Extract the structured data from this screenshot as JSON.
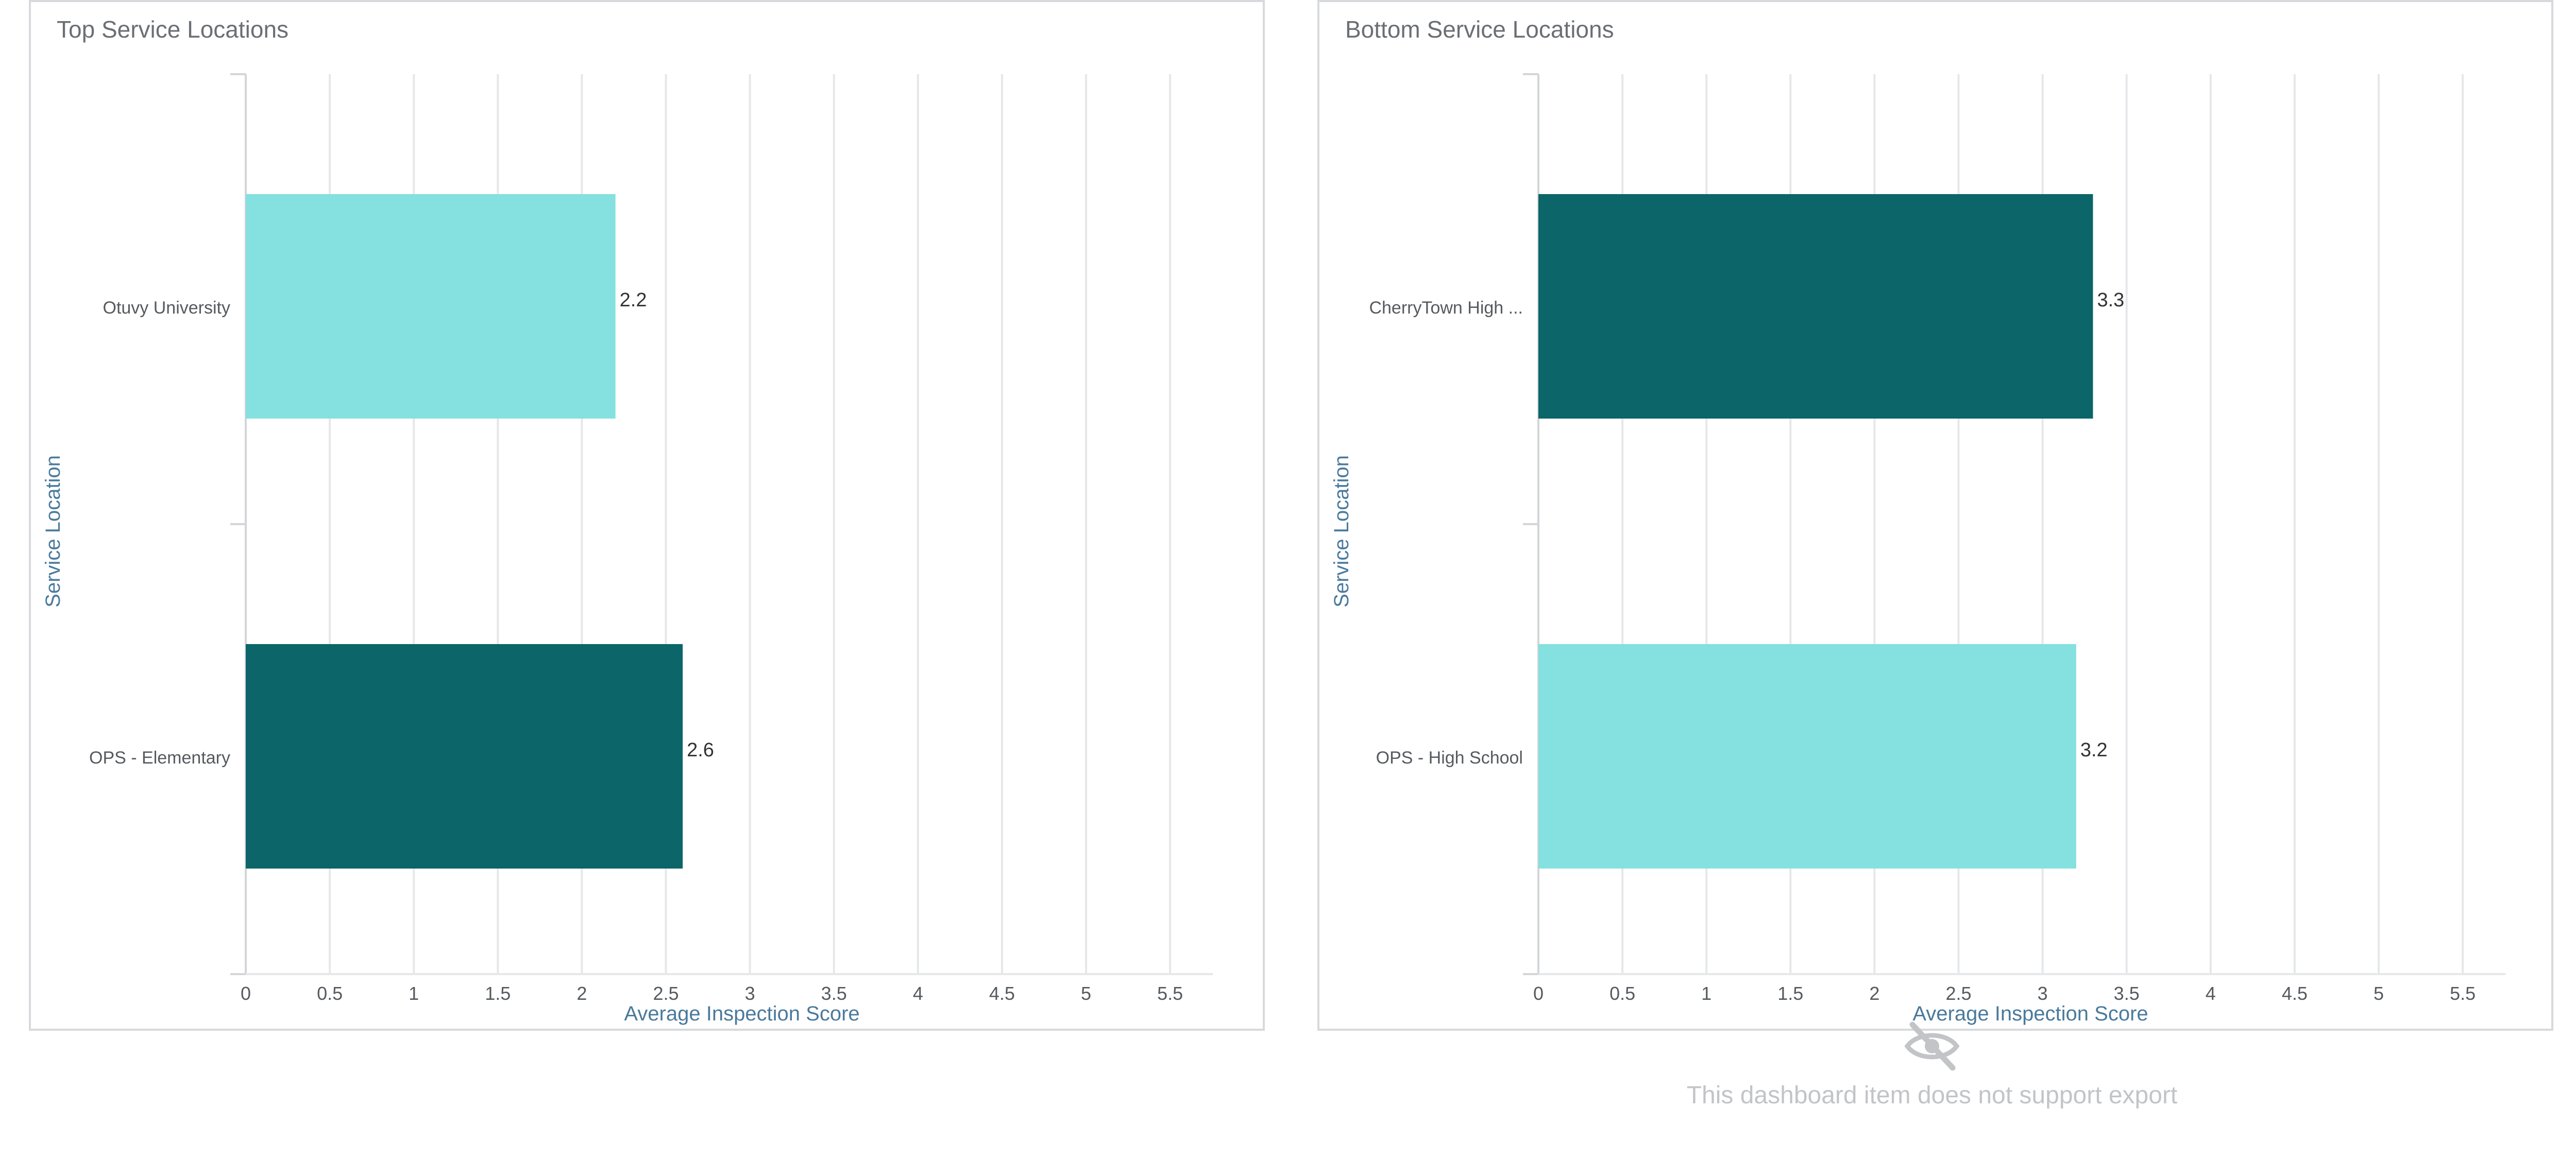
{
  "panels": [
    {
      "title": "Top Service Locations",
      "export_label": ""
    },
    {
      "title": "Bottom Service Locations",
      "export_label": ""
    }
  ],
  "export_notice": {
    "text": "This dashboard item does not support export",
    "icon": "eye-slash-icon",
    "color": "#c2c4c7"
  },
  "colors": {
    "dark_teal": "#0b6569",
    "light_teal": "#85e0e0",
    "grid": "#e6e7e9",
    "axis_title": "#4a7a9c",
    "tick_text": "#555a5f"
  },
  "chart_data": [
    {
      "type": "bar",
      "orientation": "horizontal",
      "title": "Top Service Locations",
      "categories": [
        "Otuvy University",
        "OPS - Elementary"
      ],
      "values": [
        2.2,
        2.6
      ],
      "data_labels": [
        "2.2",
        "2.6"
      ],
      "bar_colors": [
        "#85e0e0",
        "#0b6569"
      ],
      "xlabel": "Average Inspection Score",
      "ylabel": "Service Location",
      "xlim": [
        0,
        6
      ],
      "xticks": [
        "0",
        "0.5",
        "1",
        "1.5",
        "2",
        "2.5",
        "3",
        "3.5",
        "4",
        "4.5",
        "5",
        "5.5"
      ],
      "grid": "vertical"
    },
    {
      "type": "bar",
      "orientation": "horizontal",
      "title": "Bottom Service Locations",
      "categories": [
        "CherryTown High ...",
        "OPS - High School"
      ],
      "values": [
        3.3,
        3.2
      ],
      "data_labels": [
        "3.3",
        "3.2"
      ],
      "bar_colors": [
        "#0b6569",
        "#85e0e0"
      ],
      "xlabel": "Average Inspection Score",
      "ylabel": "Service Location",
      "xlim": [
        0,
        6
      ],
      "xticks": [
        "0",
        "0.5",
        "1",
        "1.5",
        "2",
        "2.5",
        "3",
        "3.5",
        "4",
        "4.5",
        "5",
        "5.5"
      ],
      "grid": "vertical"
    }
  ]
}
